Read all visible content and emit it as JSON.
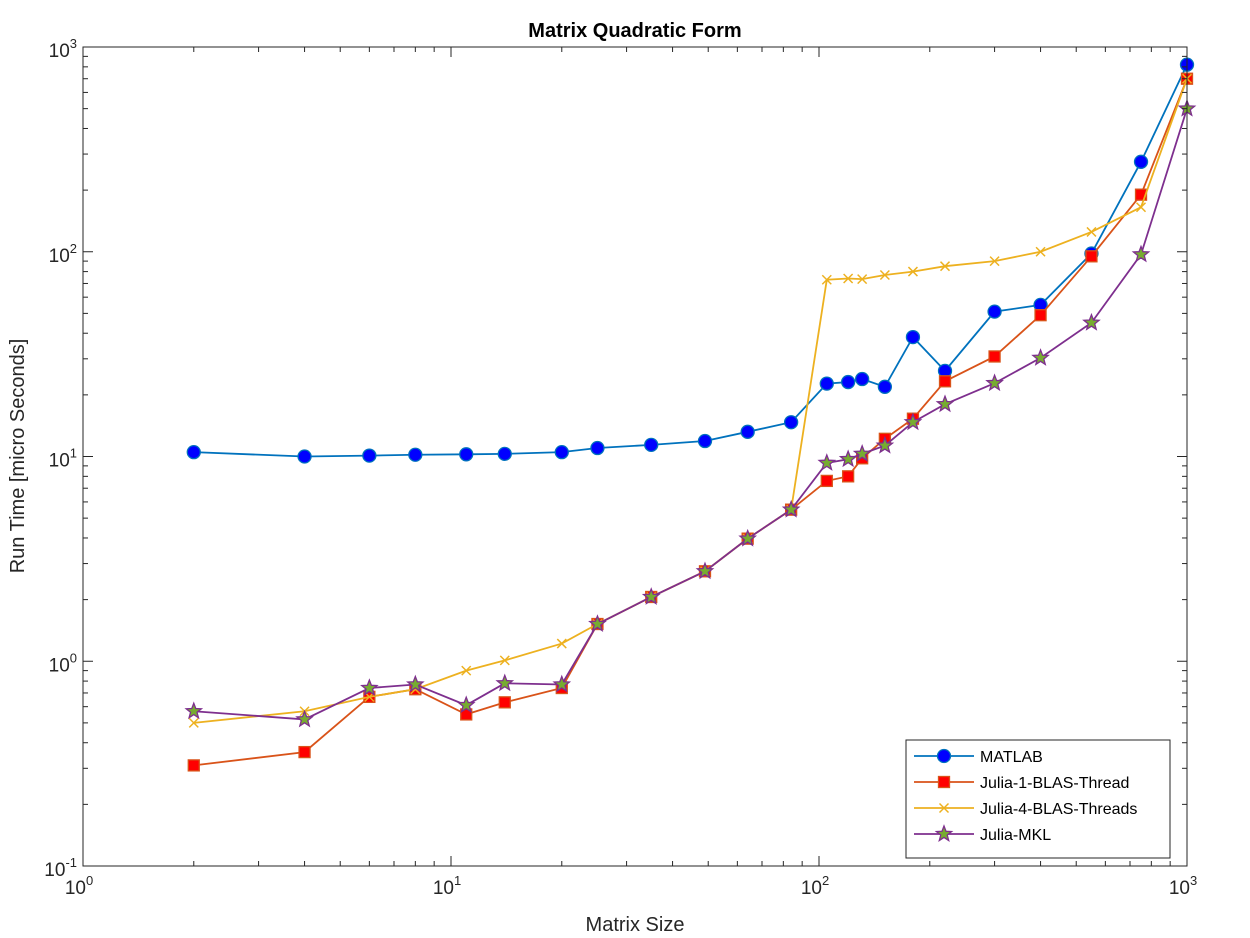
{
  "chart_data": {
    "type": "line",
    "title": "Matrix Quadratic Form",
    "xlabel": "Matrix Size",
    "ylabel": "Run Time  [micro Seconds]",
    "xscale": "log",
    "yscale": "log",
    "xlim": [
      1,
      1000
    ],
    "ylim": [
      0.1,
      1000
    ],
    "grid": false,
    "legend_position": "bottom-right",
    "x_ticks": [
      {
        "base": "10",
        "exp": "0",
        "value": 1
      },
      {
        "base": "10",
        "exp": "1",
        "value": 10
      },
      {
        "base": "10",
        "exp": "2",
        "value": 100
      },
      {
        "base": "10",
        "exp": "3",
        "value": 1000
      }
    ],
    "y_ticks": [
      {
        "base": "10",
        "exp": "-1",
        "value": 0.1
      },
      {
        "base": "10",
        "exp": "0",
        "value": 1
      },
      {
        "base": "10",
        "exp": "1",
        "value": 10
      },
      {
        "base": "10",
        "exp": "2",
        "value": 100
      },
      {
        "base": "10",
        "exp": "3",
        "value": 1000
      }
    ],
    "x": [
      2,
      4,
      6,
      8,
      11,
      14,
      20,
      25,
      35,
      49,
      64,
      84,
      105,
      120,
      131,
      151,
      180,
      220,
      300,
      400,
      550,
      750,
      1000
    ],
    "series": [
      {
        "name": "MATLAB",
        "color": "#0072BD",
        "marker": "circle",
        "marker_face": "#0000FF",
        "values": [
          10.5,
          10.0,
          10.1,
          10.2,
          10.25,
          10.3,
          10.5,
          11.0,
          11.4,
          11.9,
          13.2,
          14.7,
          22.7,
          23.1,
          23.9,
          21.9,
          38.3,
          26.2,
          51.0,
          55.0,
          98.0,
          275.0,
          820.0
        ]
      },
      {
        "name": "Julia-1-BLAS-Thread",
        "color": "#D95319",
        "marker": "square",
        "marker_face": "#FF0000",
        "values": [
          0.31,
          0.36,
          0.67,
          0.73,
          0.55,
          0.63,
          0.74,
          1.52,
          2.06,
          2.75,
          3.97,
          5.5,
          7.6,
          8.0,
          9.8,
          12.2,
          15.3,
          23.3,
          30.8,
          49.0,
          95.0,
          190.0,
          700.0
        ]
      },
      {
        "name": "Julia-4-BLAS-Threads",
        "color": "#EDB120",
        "marker": "x",
        "marker_face": "#EDB120",
        "values": [
          0.5,
          0.57,
          0.67,
          0.73,
          0.9,
          1.01,
          1.22,
          1.52,
          2.06,
          2.75,
          3.97,
          5.5,
          73.0,
          74.0,
          73.5,
          77.0,
          80.0,
          85.0,
          90.0,
          100.0,
          125.0,
          165.0,
          700.0
        ]
      },
      {
        "name": "Julia-MKL",
        "color": "#7E2F8E",
        "marker": "star",
        "marker_face": "#77AC30",
        "values": [
          0.57,
          0.52,
          0.74,
          0.77,
          0.61,
          0.78,
          0.77,
          1.52,
          2.06,
          2.75,
          3.97,
          5.5,
          9.3,
          9.7,
          10.3,
          11.3,
          14.7,
          18.0,
          22.8,
          30.3,
          45.0,
          97.0,
          500.0
        ]
      }
    ]
  }
}
